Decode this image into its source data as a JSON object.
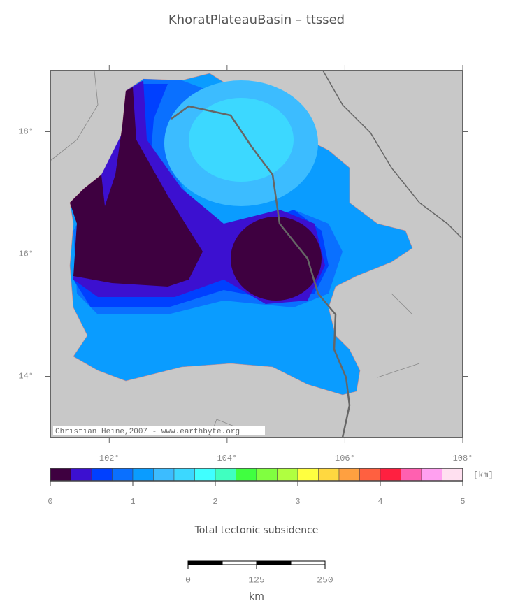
{
  "title": "KhoratPlateauBasin – ttssed",
  "map": {
    "xlim": [
      101,
      108
    ],
    "ylim": [
      13,
      19
    ],
    "xticks": [
      {
        "value": 102,
        "label": "102°"
      },
      {
        "value": 104,
        "label": "104°"
      },
      {
        "value": 106,
        "label": "106°"
      },
      {
        "value": 108,
        "label": "108°"
      }
    ],
    "yticks": [
      {
        "value": 14,
        "label": "14°"
      },
      {
        "value": 16,
        "label": "16°"
      },
      {
        "value": 18,
        "label": "18°"
      }
    ],
    "credit": "Christian Heine,2007 - www.earthbyte.org"
  },
  "colorbar": {
    "lim": [
      0,
      5
    ],
    "ticks": [
      0,
      1,
      2,
      3,
      4,
      5
    ],
    "unit": "[km]",
    "label": "Total tectonic subsidence",
    "colors": [
      "#3e0040",
      "#3c10d0",
      "#0040ff",
      "#0a70ff",
      "#0a9cff",
      "#3cbcff",
      "#3cd8ff",
      "#40ffff",
      "#40ffc0",
      "#40ff40",
      "#80ff40",
      "#b0ff40",
      "#ffff40",
      "#ffd840",
      "#ffa040",
      "#ff6040",
      "#ff2040",
      "#ff60b0",
      "#ffa0f0",
      "#ffe0f0"
    ]
  },
  "scalebar": {
    "lim": [
      0,
      250
    ],
    "ticks": [
      0,
      125,
      250
    ],
    "unit": "km"
  }
}
